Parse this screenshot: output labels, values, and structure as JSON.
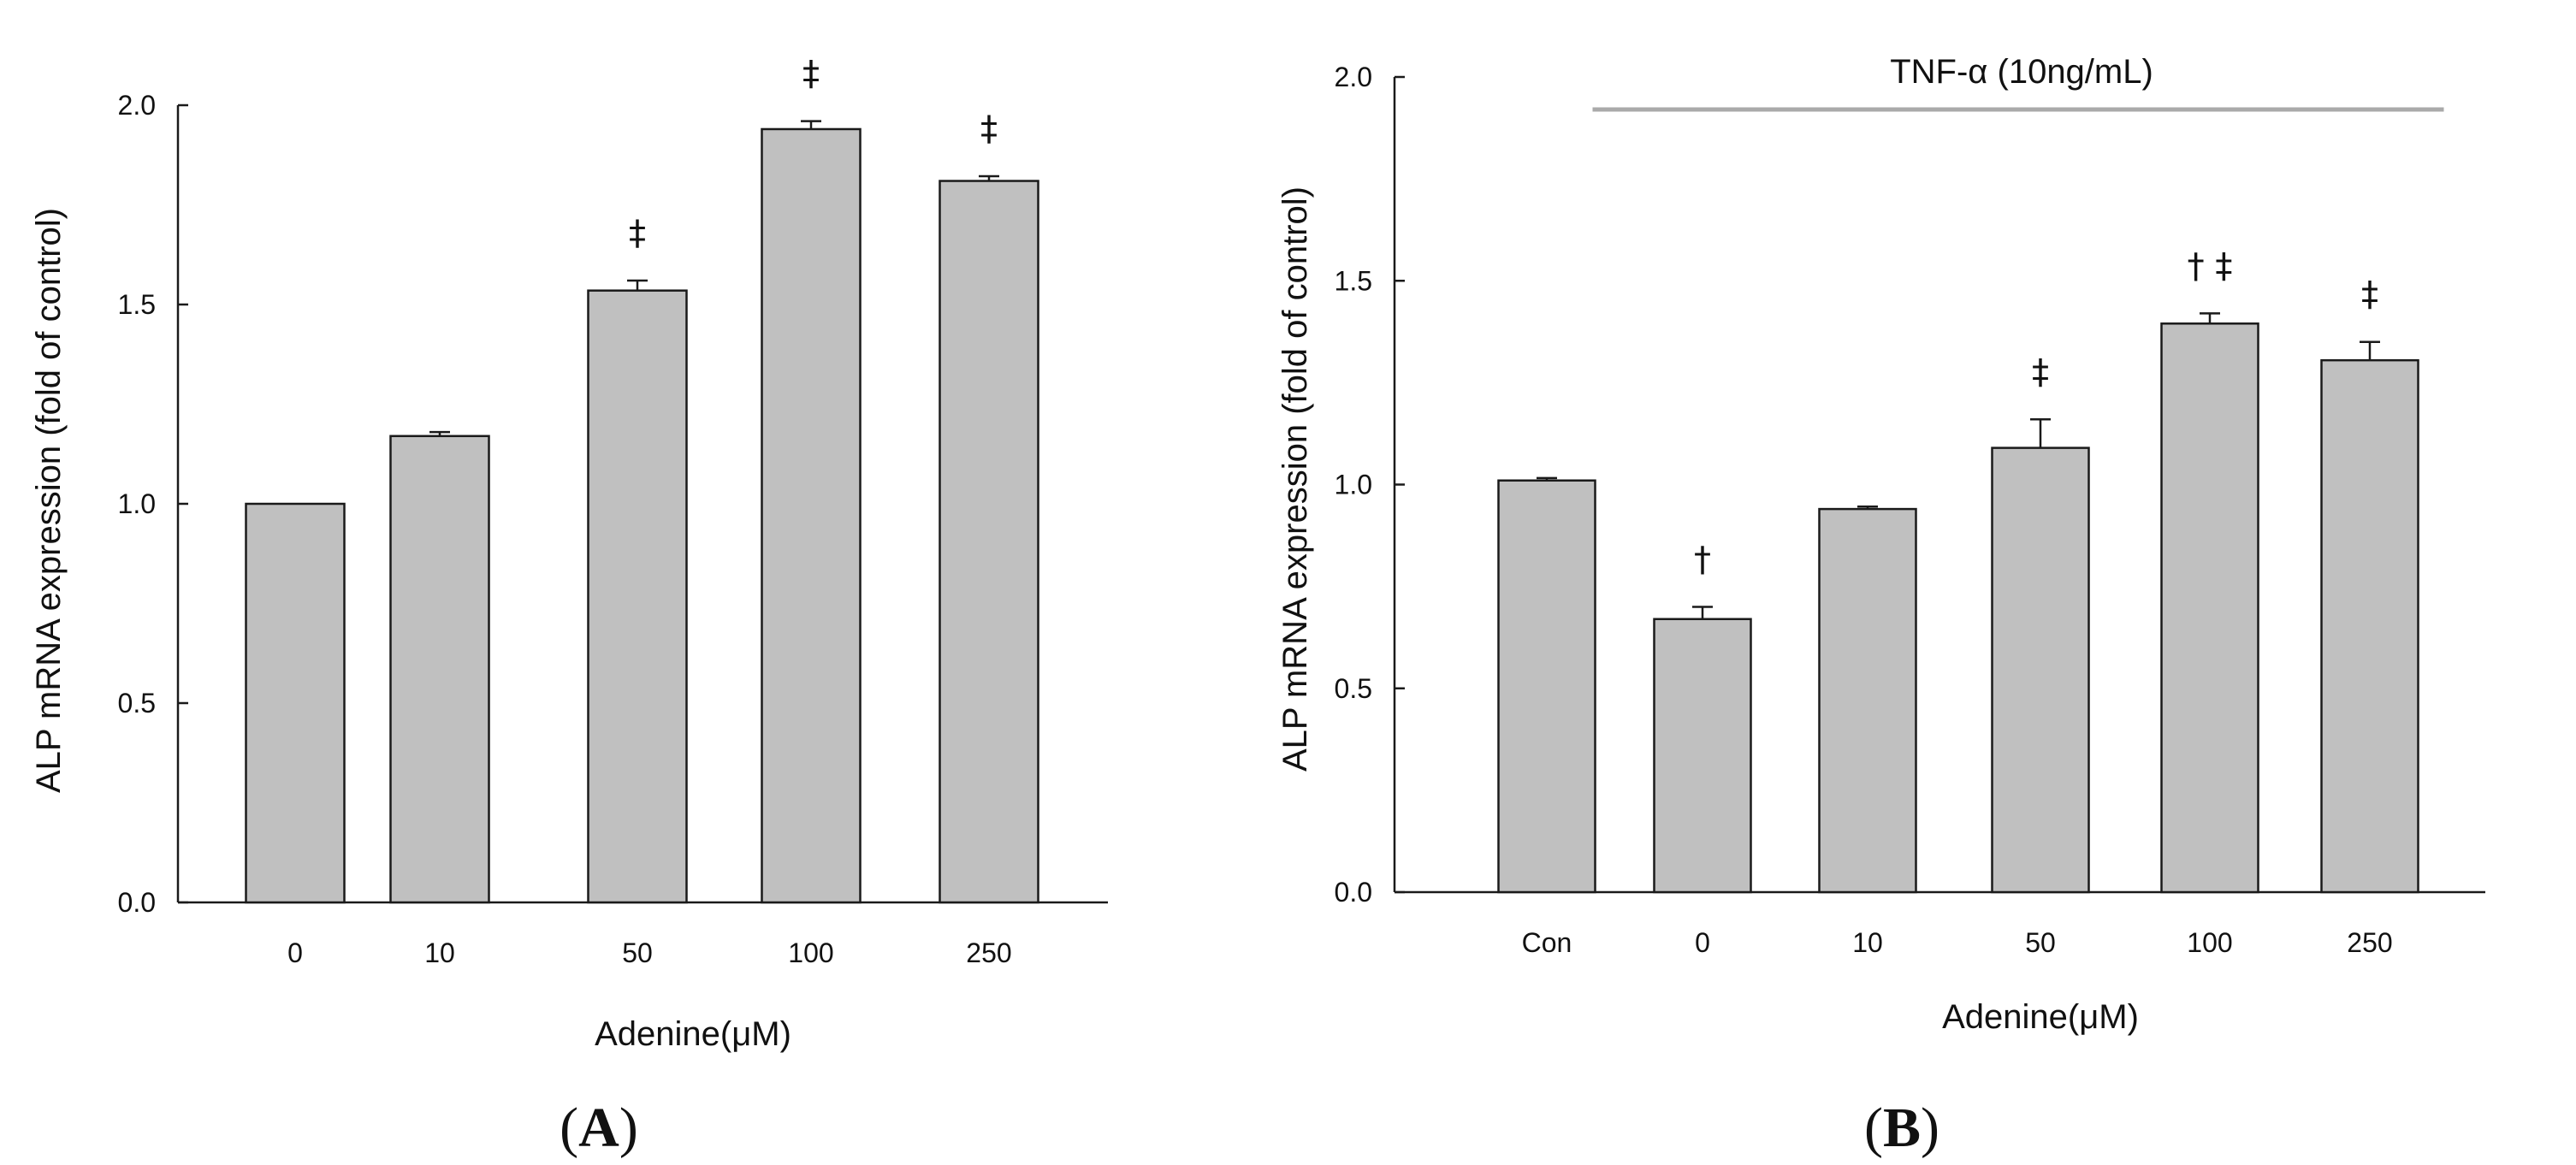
{
  "colors": {
    "bar_fill": "#c0c0c0",
    "bar_stroke": "#1a1a1a",
    "axis": "#1a1a1a",
    "treatment_line": "#aaaaaa",
    "background": "#ffffff"
  },
  "chart_data": [
    {
      "type": "bar",
      "panel": "A",
      "panel_label": {
        "open": "(",
        "letter": "A",
        "close": ")"
      },
      "categories": [
        "0",
        "10",
        "50",
        "100",
        "250"
      ],
      "values": [
        1.0,
        1.17,
        1.535,
        1.94,
        1.81
      ],
      "errors": [
        0.0,
        0.01,
        0.025,
        0.02,
        0.012
      ],
      "significance": [
        "",
        "",
        "‡",
        "‡",
        "‡"
      ],
      "xlabel": "Adenine(μM)",
      "ylabel": "ALP mRNA expression (fold of control)",
      "ylim": [
        0,
        2.0
      ],
      "yticks": [
        0.0,
        0.5,
        1.0,
        1.5,
        2.0
      ],
      "ytick_labels": [
        "0.0",
        "0.5",
        "1.0",
        "1.5",
        "2.0"
      ],
      "grid": false
    },
    {
      "type": "bar",
      "panel": "B",
      "panel_label": {
        "open": "(",
        "letter": "B",
        "close": ")"
      },
      "categories": [
        "Con",
        "0",
        "10",
        "50",
        "100",
        "250"
      ],
      "values": [
        1.01,
        0.67,
        0.94,
        1.09,
        1.395,
        1.305
      ],
      "errors": [
        0.006,
        0.03,
        0.006,
        0.07,
        0.025,
        0.045
      ],
      "significance": [
        "",
        "†",
        "",
        "‡",
        "† ‡",
        "‡"
      ],
      "annotation": {
        "text": "TNF-α (10ng/mL)",
        "from_category": "0",
        "to_category": "250"
      },
      "xlabel": "Adenine(μM)",
      "ylabel": "ALP mRNA expression (fold of control)",
      "ylim": [
        0,
        2.0
      ],
      "yticks": [
        0.0,
        0.5,
        1.0,
        1.5,
        2.0
      ],
      "ytick_labels": [
        "0.0",
        "0.5",
        "1.0",
        "1.5",
        "2.0"
      ],
      "grid": false
    }
  ]
}
